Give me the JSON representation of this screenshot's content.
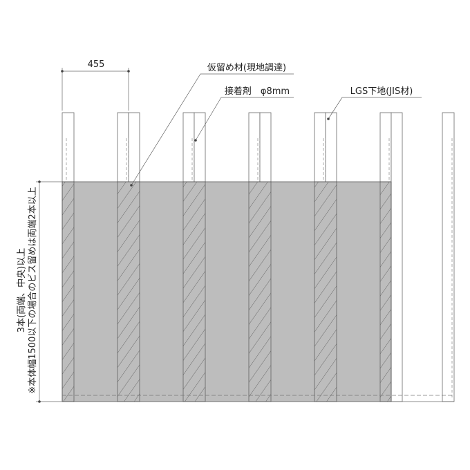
{
  "dimension": {
    "label": "455"
  },
  "callouts": [
    {
      "label": "仮留め材(現地調達)"
    },
    {
      "label": "接着剤　φ8mm"
    },
    {
      "label": "LGS下地(JIS材)"
    }
  ],
  "side_note": {
    "lines": [
      "3本(両端、中央)以上",
      "※本体幅1500以下の場合のビス留めは両端2本以上"
    ]
  }
}
